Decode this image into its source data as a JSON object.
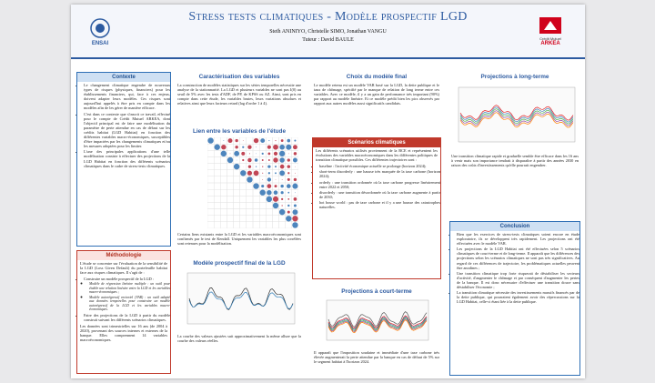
{
  "header": {
    "title": "Stress tests climatiques - Modèle prospectif LGD",
    "authors": "Steïh ANINIYO, Christelle SIMO, Jonathan VANGU",
    "tutor": "Tuteur : David BAULE",
    "logo_left": "ENSAI",
    "logo_right": [
      "Crédit Mutuel",
      "ARKEA"
    ]
  },
  "contexte": {
    "title": "Contexte",
    "bullets": [
      "Le changement climatique engendre de nouveaux types de risques (physiques, financiers) pour les établissements financiers, qui, face à ces enjeux, doivent adapter leurs modèles. Ces risques sont aujourd'hui appelés à être pris en compte dans les modèles afin de les gérer de manière efficace.",
      "C'est dans ce contexte que s'inscrit ce travail, effectué pour le compte de Crédit Mutuel ARKEA, dont l'objectif principal est de faire une modélisation du paramètre de perte attendue en cas de défaut sur les crédits habitat (LGD Habitat) en fonction des différentes variables macro-économiques, susceptibles d'être impactées par les changements climatiques et/ou les mesures adoptées pour les limiter.",
      "L'une des principales applications d'une telle modélisation consiste à effectuer des projections de la LGD Habitat en fonction des différents scénarios climatiques dans le cadre de stress-tests climatiques."
    ]
  },
  "methodologie": {
    "title": "Méthodologie",
    "intro": "L'étude se concentre sur l'évaluation de la sensibilité de la LGD (Loss Given Default) du portefeuille habitat face aux risques climatiques. Il s'agit de :",
    "bullets": [
      "Construire un modèle prospectif de la LGD :",
      "Faire des projections de la LGD à partir du modèle construit suivant les différents scénarios climatiques."
    ],
    "sub_bullets": [
      "Modèle de régression linéaire multiple : un outil pour établir une relation linéaire entre la LGD et les variables macro-économiques ;",
      "Modèle autorégressif vectoriel (VAR) : un outil adapté aux données temporelles pour construire un modèle autorégressif de la LGD et les variables macro-économiques."
    ],
    "outro": "Les données sont trimestrielles sur 16 ans (de 2004 à 2020), provenant des sources internes et externes de la banque. Elles comprennent 14 variables macroéconomiques."
  },
  "caracterisation": {
    "title": "Caractérisation des variables",
    "text": "La construction de modèles statistiques sur les séries temporelles nécessite une analyse de la stationnarité. La LGD et plusieurs variables ne sont pas I(0) au seuil de 5% avec les tests d'ADF, de PP, de KPSS ou AZ. Ainsi, sont pris en compte dans cette étude, les variables brutes, leurs variations absolues et relatives ainsi que leurs facteurs retard (lag d'ordre 1 à 4)."
  },
  "liens": {
    "title": "Lien entre les variables de l'étude",
    "text": "Certains liens existants entre la LGD et les variables macroéconomiques sont confirmés par le test de Kendall. Uniquement les variables les plus corrélées sont retenues pour la modélisation."
  },
  "modele_final": {
    "title": "Modèle prospectif final de la LGD",
    "text": "La courbe des valeurs ajustées suit approximativement la même allure que la courbe des valeurs réelles."
  },
  "choix": {
    "title": "Choix du modèle final",
    "text": "Le modèle retenu est un modèle VAR basé sur la LGD, la dette publique et le taux de chômage, spécifié par le manque de relation de long terme entre ces variables. Avec ce modèle, il y a un gain de performance très important (90%) par rapport au modèle linéaire. Et ce modèle prédit bien les pics observés par rapport aux autres modèles aussi significatifs candidats."
  },
  "scenarios": {
    "title": "Scénarios climatiques",
    "intro": "Les différents scénarios utilisés proviennent de la BCE et représentent les évolutions des variables macroéconomiques dans les différentes politiques de transition climatique possibles. Ces différentes trajectoires sont :",
    "bullets": [
      "baseline : l'activité économique actuelle se prolonge (horizon 2024);",
      "short-term disorderly : une hausse très marquée de la taxe carbone (horizon 2024);",
      "orderly : une transition ordonnée où la taxe carbone progresse linéairement entre 2022 et 2050;",
      "disorderly : une transition désordonnée où la taxe carbone augmente à partir de 2030;",
      "hot house world : pas de taxe carbone et il y a une hausse des catastrophes naturelles."
    ]
  },
  "court_terme": {
    "title": "Projections à court-terme",
    "text": "Il apparaît que l'imposition soudaine et immédiate d'une taxe carbone très élevée augmenterait la perte attendue par la banque en cas de défaut de 5% sur le segment habitat à l'horizon 2024."
  },
  "long_terme": {
    "title": "Projections à long-terme",
    "text": "Une transition climatique rapide et graduelle semble être efficace dans les 16 ans à venir mais son importance tendrait à disparaître à partir des années 2030 en raison des coûts d'investissements qu'elle pourrait engendrer."
  },
  "conclusion": {
    "title": "Conclusion",
    "bullets": [
      "Bien que les exercices de stress-tests climatiques soient encore en étude exploratoire, ils se développent très rapidement. Les projections ont été effectuées avec le modèle VAR.",
      "Les projections de la LGD Habitat ont été effectuées selon 5 scénarios climatiques de court-terme et de long-terme. Il apparaît que les différences des projections selon les scénarios climatiques ne sont pas très significatives. Au regard de ces différences de trajectoire, les problématiques actuelles peuvent être anodines ;",
      "Une transition climatique trop forte risquerait de déstabiliser les secteurs d'activité, d'augmenter le chômage et par conséquent d'augmenter les pertes de la banque. Il est donc nécessaire d'effectuer une transition douce sans déstabiliser l'économie ;",
      "La transition climatique nécessite des investissements massifs financés par de la dette publique, qui pourraient également avoir des répercussions sur la LGD Habitat, celle-ci étant liée à la dette publique."
    ]
  }
}
